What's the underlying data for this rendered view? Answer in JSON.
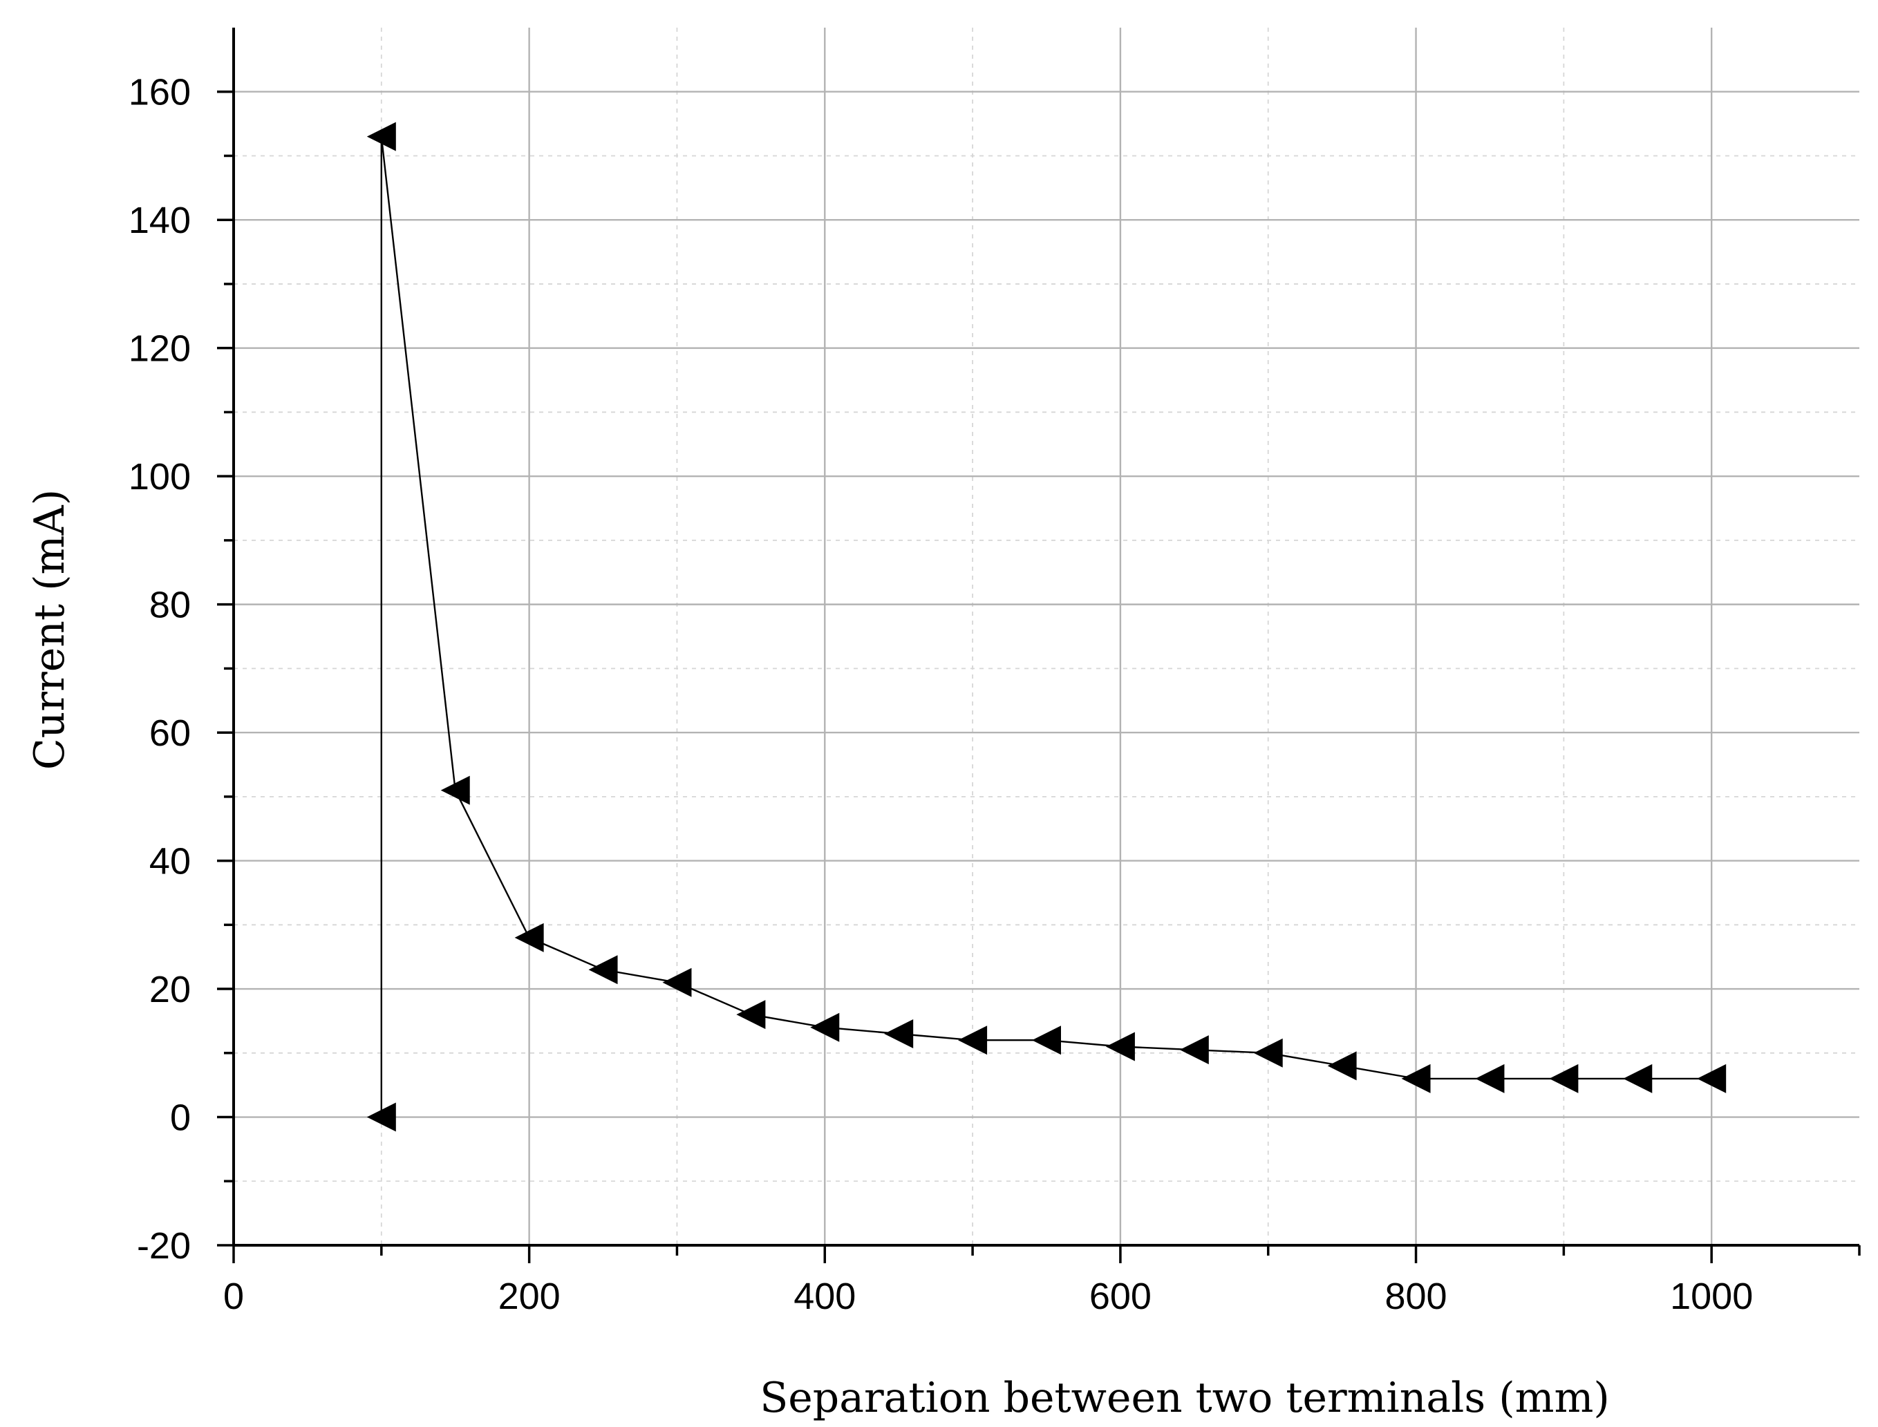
{
  "chart_data": {
    "type": "line",
    "title": "",
    "xlabel": "Separation between two terminals (mm)",
    "ylabel": "Current (mA)",
    "xlim": [
      0,
      1100
    ],
    "ylim": [
      -20,
      170
    ],
    "x_major_ticks": [
      0,
      200,
      400,
      600,
      800,
      1000
    ],
    "x_minor_ticks": [
      100,
      300,
      500,
      700,
      900,
      1100
    ],
    "y_major_ticks": [
      -20,
      0,
      20,
      40,
      60,
      80,
      100,
      120,
      140,
      160
    ],
    "y_minor_ticks": [
      -10,
      10,
      30,
      50,
      70,
      90,
      110,
      130,
      150
    ],
    "x_tick_labels": [
      "0",
      "200",
      "400",
      "600",
      "800",
      "1000"
    ],
    "y_tick_labels": [
      "-20",
      "0",
      "20",
      "40",
      "60",
      "80",
      "100",
      "120",
      "140",
      "160"
    ],
    "grid": true,
    "legend": "none",
    "marker": "left-pointing-triangle",
    "series": [
      {
        "x": [
          100,
          100,
          150,
          200,
          250,
          300,
          350,
          400,
          450,
          500,
          550,
          600,
          650,
          700,
          750,
          800,
          850,
          900,
          950,
          1000
        ],
        "y": [
          0,
          153,
          51,
          28,
          23,
          21,
          16,
          14,
          13,
          12,
          12,
          11,
          10.5,
          10,
          8,
          6,
          6,
          6,
          6,
          6
        ]
      }
    ],
    "colors": {
      "series": "#000000",
      "major_grid": "#b3b3b3",
      "minor_grid": "#d6d6d6",
      "axis": "#000000"
    }
  }
}
